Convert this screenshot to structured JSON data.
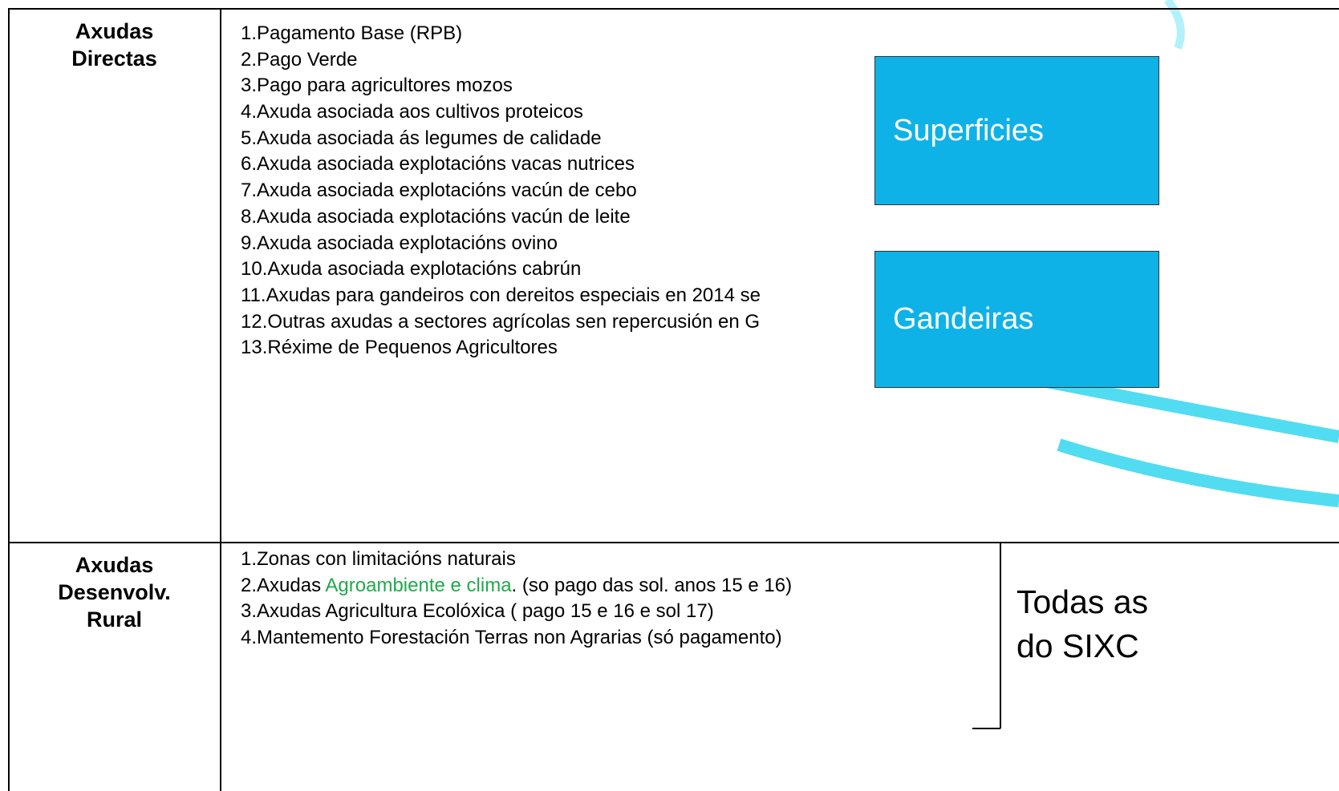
{
  "table": {
    "rows": [
      {
        "label": [
          "Axudas",
          "Directas"
        ],
        "items": [
          "1.Pagamento Base (RPB)",
          "2.Pago Verde",
          "3.Pago para agricultores mozos",
          "4.Axuda asociada aos cultivos proteicos",
          "5.Axuda asociada ás legumes de calidade",
          "6.Axuda asociada explotacións vacas nutrices",
          "7.Axuda asociada explotacións vacún de cebo",
          "8.Axuda asociada explotacións vacún de leite",
          "9.Axuda asociada explotacións ovino",
          "10.Axuda asociada explotacións cabrún",
          "11.Axudas para gandeiros con dereitos especiais en 2014 se",
          "12.Outras axudas a sectores agrícolas sen repercusión en G",
          "13.Réxime de Pequenos Agricultores"
        ]
      },
      {
        "label": [
          "Axudas",
          "Desenvolv.",
          "Rural"
        ],
        "items": [
          [
            "1.Zonas con limitacións naturais"
          ],
          [
            "2.Axudas ",
            "Agroambiente e clima",
            ". (so pago das sol. anos 15 e 16)"
          ],
          [
            "3.Axudas Agricultura Ecolóxica ( pago 15 e 16 e sol 17)"
          ],
          [
            "4.Mantemento Forestación Terras non Agrarias  (só pagamento)"
          ]
        ]
      }
    ]
  },
  "boxes": [
    "Superficies",
    "Gandeiras"
  ],
  "bracket_label": [
    "Todas as",
    "do SIXC"
  ]
}
